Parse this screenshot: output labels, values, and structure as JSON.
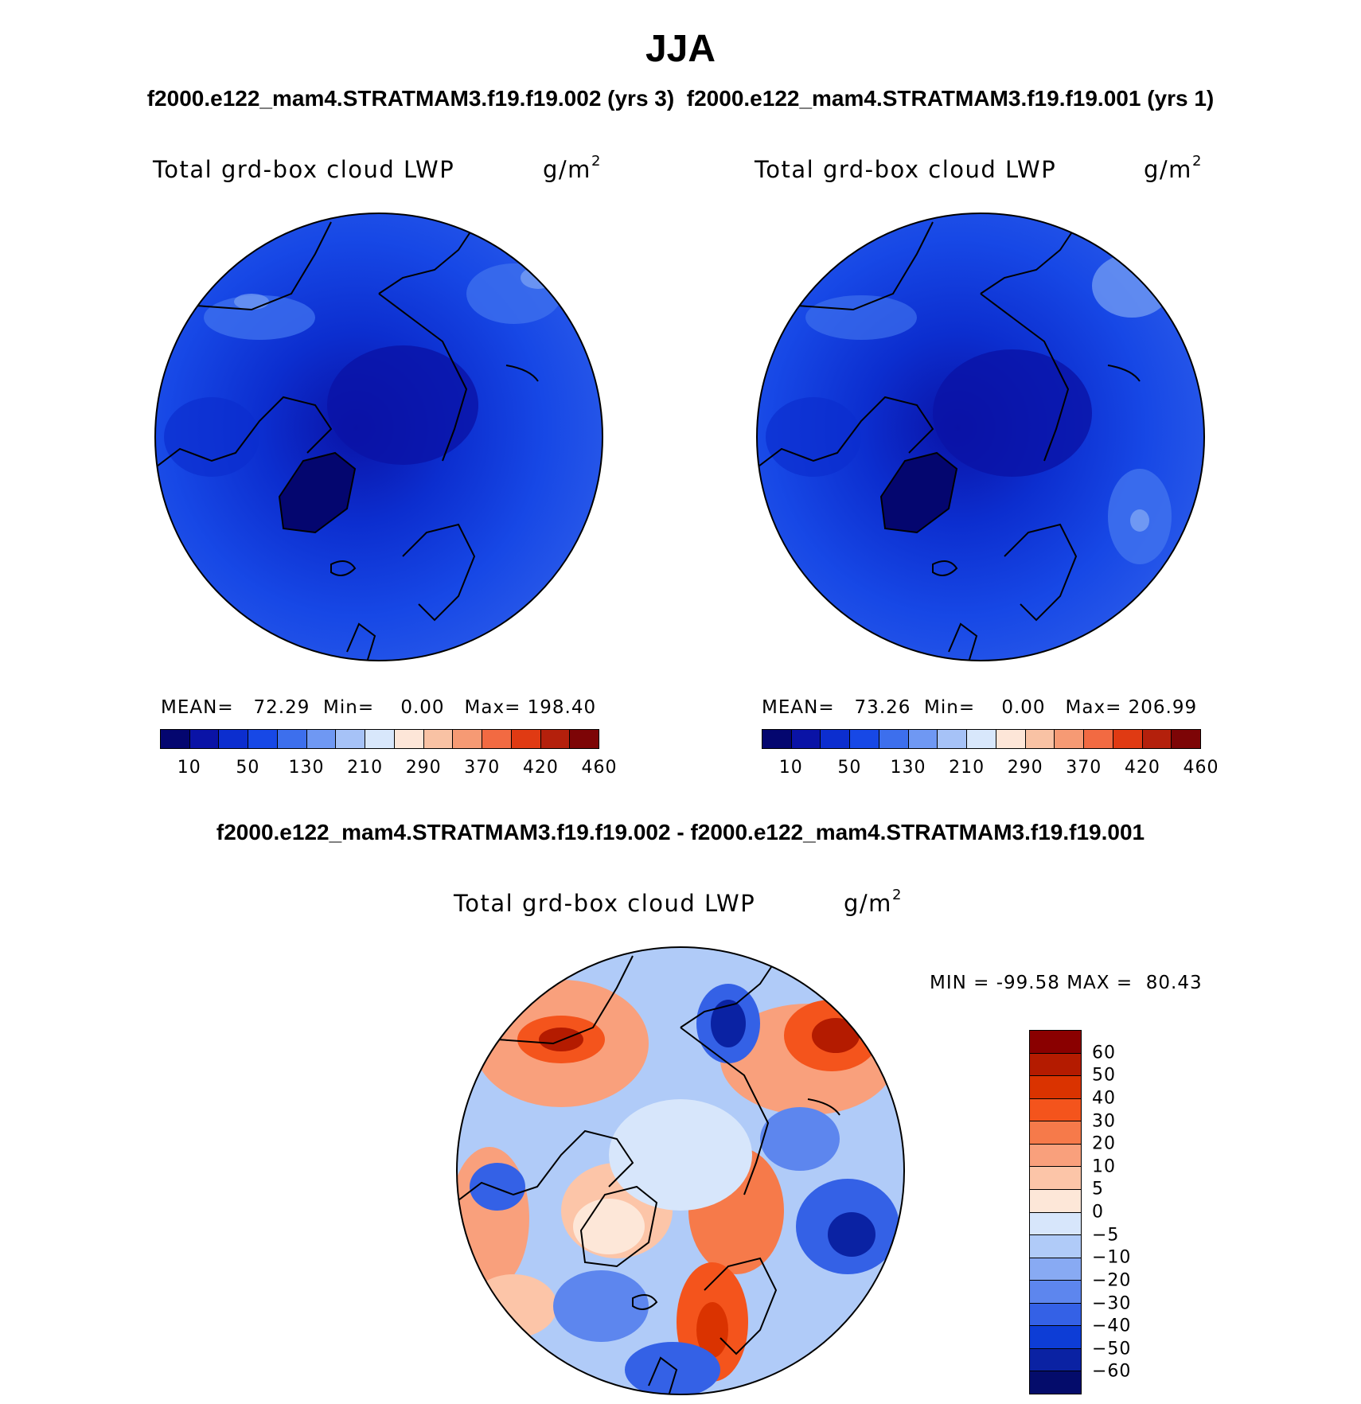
{
  "title": "JJA",
  "headline_left": "f2000.e122_mam4.STRATMAM3.f19.f19.002 (yrs 3)",
  "headline_right": "f2000.e122_mam4.STRATMAM3.f19.f19.001 (yrs 1)",
  "diff_headline": "f2000.e122_mam4.STRATMAM3.f19.f19.002 - f2000.e122_mam4.STRATMAM3.f19.f19.001",
  "chart_data": [
    {
      "type": "heatmap",
      "projection": "polar-stereographic north",
      "variable": "Total grd-box cloud LWP",
      "units": "g/m",
      "units_exp": "2",
      "stats": {
        "mean_label": "MEAN=",
        "mean": "72.29",
        "min_label": "Min=",
        "min": "0.00",
        "max_label": "Max=",
        "max": "198.40"
      },
      "colorbar_ticks": [
        "10",
        "50",
        "130",
        "210",
        "290",
        "370",
        "420",
        "460"
      ],
      "colorbar_colors": [
        "#04066f",
        "#0a13a6",
        "#0c2ecf",
        "#1748e6",
        "#3d6fed",
        "#6f98f3",
        "#a6c2f7",
        "#d8e7fb",
        "#fde6d8",
        "#f9c2a4",
        "#f69a74",
        "#f26a42",
        "#e03a13",
        "#b4200c",
        "#7d0506"
      ]
    },
    {
      "type": "heatmap",
      "projection": "polar-stereographic north",
      "variable": "Total grd-box cloud LWP",
      "units": "g/m",
      "units_exp": "2",
      "stats": {
        "mean_label": "MEAN=",
        "mean": "73.26",
        "min_label": "Min=",
        "min": "0.00",
        "max_label": "Max=",
        "max": "206.99"
      },
      "colorbar_ticks": [
        "10",
        "50",
        "130",
        "210",
        "290",
        "370",
        "420",
        "460"
      ],
      "colorbar_colors": [
        "#04066f",
        "#0a13a6",
        "#0c2ecf",
        "#1748e6",
        "#3d6fed",
        "#6f98f3",
        "#a6c2f7",
        "#d8e7fb",
        "#fde6d8",
        "#f9c2a4",
        "#f69a74",
        "#f26a42",
        "#e03a13",
        "#b4200c",
        "#7d0506"
      ]
    },
    {
      "type": "heatmap",
      "projection": "polar-stereographic north",
      "variable": "Total grd-box cloud LWP",
      "units": "g/m",
      "units_exp": "2",
      "stats": {
        "min_label": "MIN =",
        "min": "-99.58",
        "max_label": "MAX =",
        "max": "80.43"
      },
      "colorbar_ticks": [
        "60",
        "50",
        "40",
        "30",
        "20",
        "10",
        "5",
        "0",
        "−5",
        "−10",
        "−20",
        "−30",
        "−40",
        "−50",
        "−60"
      ],
      "colorbar_colors": [
        "#8a0000",
        "#b41b00",
        "#da3300",
        "#f4541c",
        "#f67a4a",
        "#f9a07c",
        "#fcc5a8",
        "#fde7d8",
        "#d7e6fb",
        "#b0cbf8",
        "#88aaf3",
        "#5d86ee",
        "#3461e6",
        "#0d3dd6",
        "#0a22a3",
        "#040c6b"
      ]
    }
  ]
}
